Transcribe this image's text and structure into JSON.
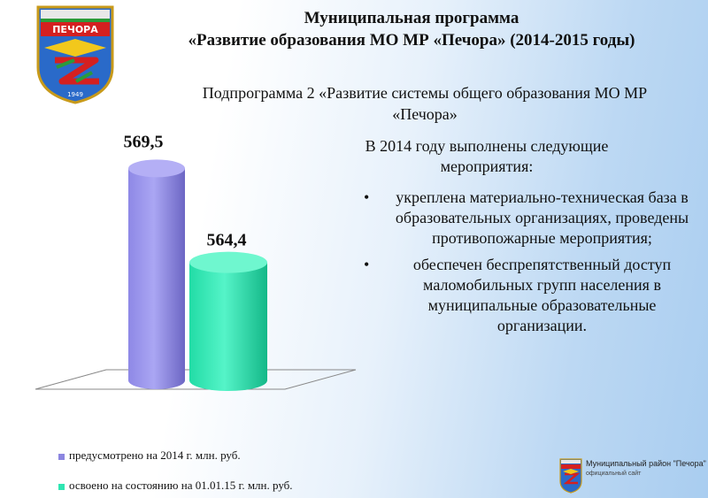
{
  "header": {
    "title_line1": "Муниципальная программа",
    "title_line2": "«Развитие образования МО МР «Печора»  (2014-2015 годы)",
    "emblem_text": "ПЕЧОРА",
    "emblem_year": "1949"
  },
  "subprogram": "Подпрограмма 2 «Развитие системы общего образования МО МР «Печора»",
  "colors": {
    "planned": "#8c86e0",
    "actual": "#2fe6b2"
  },
  "chart_data": {
    "type": "bar",
    "style": "3d-cylinder",
    "categories": [
      "предусмотрено на 2014 г. млн. руб.",
      "освоено на состоянию на 01.01.15 г. млн. руб."
    ],
    "series": [
      {
        "name": "предусмотрено на 2014 г. млн. руб.",
        "value": 569.5,
        "label": "569,5",
        "color": "#8c86e0"
      },
      {
        "name": "освоено на состоянию на 01.01.15 г. млн. руб.",
        "value": 564.4,
        "label": "564,4",
        "color": "#2fe6b2"
      }
    ],
    "ylim": [
      558,
      570
    ],
    "legend_position": "bottom-left",
    "grid": false
  },
  "content": {
    "intro": "В 2014 году выполнены следующие мероприятия:",
    "bullets": [
      "укреплена материально-техническая база в образовательных организациях, проведены противопожарные мероприятия;",
      "обеспечен беспрепятственный доступ маломобильных групп населения в муниципальные образовательные организации."
    ],
    "bullet_symbol": "•"
  },
  "footer": {
    "logo_title": "Муниципальный район \"Печора\"",
    "logo_subtitle": "официальный сайт"
  }
}
